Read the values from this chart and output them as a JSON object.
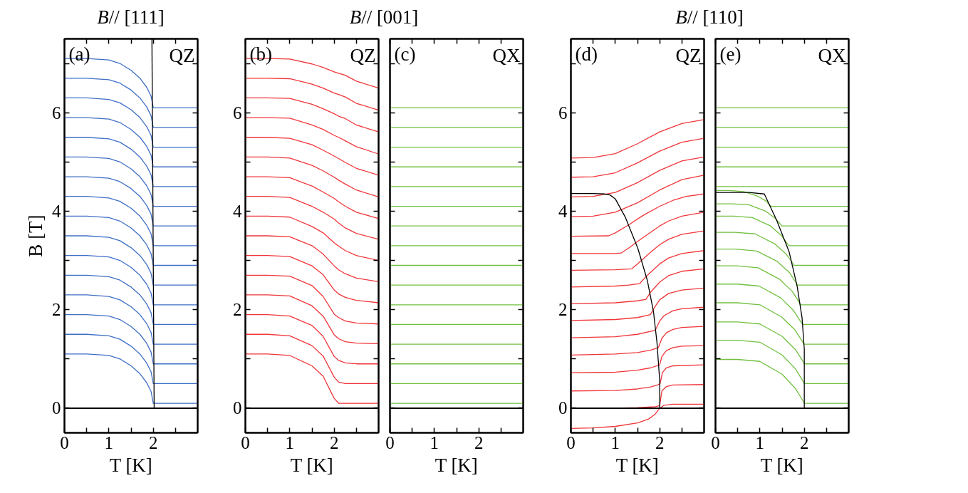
{
  "chart_data": [
    {
      "type": "line",
      "title": "B// [111]",
      "xlabel": "T [K]",
      "ylabel": "B [T]",
      "annotations": [
        "(a)",
        "QZ"
      ],
      "xlim": [
        0,
        3
      ],
      "ylim": [
        -0.5,
        7.5
      ],
      "xticks": [
        0,
        {
          "value": 0.5,
          "label": null
        },
        1,
        {
          "value": 1.5,
          "label": null
        },
        2,
        {
          "value": 2.5,
          "label": null
        }
      ],
      "yticks": [
        0,
        {
          "value": 1,
          "label": null
        },
        2,
        {
          "value": 3,
          "label": null
        },
        4,
        {
          "value": 5,
          "label": null
        },
        6,
        {
          "value": 7,
          "label": null
        }
      ],
      "ref_lines": [
        {
          "axis": "y",
          "value": 0,
          "color": "#000000"
        }
      ],
      "x": [
        0,
        0.5,
        1,
        1.25,
        1.5,
        1.7,
        1.85,
        1.95,
        2,
        3
      ],
      "series": [
        {
          "color": "#3f6fc6",
          "values": [
            1.1,
            1.1,
            1.07,
            1,
            0.86,
            0.7,
            0.52,
            0.34,
            0.1,
            0.1
          ]
        },
        {
          "color": "#3f6fc6",
          "values": [
            1.5,
            1.5,
            1.47,
            1.4,
            1.26,
            1.1,
            0.92,
            0.74,
            0.5,
            0.5
          ]
        },
        {
          "color": "#3f6fc6",
          "values": [
            1.9,
            1.9,
            1.87,
            1.8,
            1.66,
            1.5,
            1.32,
            1.14,
            0.9,
            0.9
          ]
        },
        {
          "color": "#3f6fc6",
          "values": [
            2.3,
            2.3,
            2.27,
            2.2,
            2.06,
            1.9,
            1.72,
            1.54,
            1.3,
            1.3
          ]
        },
        {
          "color": "#3f6fc6",
          "values": [
            2.7,
            2.7,
            2.67,
            2.6,
            2.46,
            2.3,
            2.12,
            1.94,
            1.7,
            1.7
          ]
        },
        {
          "color": "#3f6fc6",
          "values": [
            3.1,
            3.1,
            3.07,
            3,
            2.86,
            2.7,
            2.52,
            2.34,
            2.1,
            2.1
          ]
        },
        {
          "color": "#3f6fc6",
          "values": [
            3.5,
            3.5,
            3.47,
            3.4,
            3.26,
            3.1,
            2.92,
            2.74,
            2.5,
            2.5
          ]
        },
        {
          "color": "#3f6fc6",
          "values": [
            3.9,
            3.9,
            3.87,
            3.8,
            3.66,
            3.5,
            3.32,
            3.14,
            2.9,
            2.9
          ]
        },
        {
          "color": "#3f6fc6",
          "values": [
            4.3,
            4.3,
            4.27,
            4.2,
            4.06,
            3.9,
            3.72,
            3.54,
            3.3,
            3.3
          ]
        },
        {
          "color": "#3f6fc6",
          "values": [
            4.7,
            4.7,
            4.67,
            4.6,
            4.46,
            4.3,
            4.12,
            3.94,
            3.7,
            3.7
          ]
        },
        {
          "color": "#3f6fc6",
          "values": [
            5.1,
            5.1,
            5.07,
            5,
            4.86,
            4.7,
            4.52,
            4.34,
            4.1,
            4.1
          ]
        },
        {
          "color": "#3f6fc6",
          "values": [
            5.5,
            5.5,
            5.47,
            5.4,
            5.26,
            5.1,
            4.92,
            4.74,
            4.5,
            4.5
          ]
        },
        {
          "color": "#3f6fc6",
          "values": [
            5.9,
            5.9,
            5.87,
            5.8,
            5.66,
            5.5,
            5.32,
            5.14,
            4.9,
            4.9
          ]
        },
        {
          "color": "#3f6fc6",
          "values": [
            6.3,
            6.3,
            6.27,
            6.2,
            6.06,
            5.9,
            5.72,
            5.54,
            5.3,
            5.3
          ]
        },
        {
          "color": "#3f6fc6",
          "values": [
            6.7,
            6.7,
            6.67,
            6.6,
            6.46,
            6.3,
            6.12,
            5.94,
            5.7,
            5.7
          ]
        },
        {
          "color": "#3f6fc6",
          "values": [
            7.1,
            7.1,
            7.07,
            7,
            6.86,
            6.7,
            6.52,
            6.34,
            6.1,
            6.1
          ]
        },
        {
          "color": "#000000",
          "x": [
            1.97,
            2.02
          ],
          "values": [
            7.5,
            0
          ]
        }
      ]
    },
    {
      "type": "line",
      "title": "B// [001]",
      "xlabel": "T [K]",
      "annotations": [
        "(b)",
        "QZ"
      ],
      "xlim": [
        0,
        3
      ],
      "ylim": [
        -0.5,
        7.5
      ],
      "xticks": [
        0,
        {
          "value": 0.5,
          "label": null
        },
        1,
        {
          "value": 1.5,
          "label": null
        },
        2,
        {
          "value": 2.5,
          "label": null
        }
      ],
      "yticks": [
        0,
        {
          "value": 1,
          "label": null
        },
        2,
        {
          "value": 3,
          "label": null
        },
        4,
        {
          "value": 5,
          "label": null
        },
        6,
        {
          "value": 7,
          "label": null
        }
      ],
      "ref_lines": [
        {
          "axis": "y",
          "value": 0,
          "color": "#000000"
        }
      ],
      "x": [
        0,
        0.5,
        1,
        1.5,
        1.75,
        2,
        2.1,
        2.25,
        2.5,
        3
      ],
      "series": [
        {
          "color": "#f0363a",
          "values": [
            1.1,
            1.1,
            1.07,
            0.86,
            0.65,
            0.2,
            0.1,
            0.1,
            0.1,
            0.1
          ]
        },
        {
          "color": "#f0363a",
          "values": [
            1.5,
            1.5,
            1.47,
            1.27,
            1.06,
            0.63,
            0.53,
            0.5,
            0.5,
            0.5
          ]
        },
        {
          "color": "#f0363a",
          "values": [
            1.9,
            1.9,
            1.87,
            1.68,
            1.46,
            1.05,
            0.97,
            0.92,
            0.9,
            0.9
          ]
        },
        {
          "color": "#f0363a",
          "values": [
            2.3,
            2.3,
            2.28,
            2.08,
            1.87,
            1.49,
            1.41,
            1.35,
            1.32,
            1.31
          ]
        },
        {
          "color": "#f0363a",
          "values": [
            2.7,
            2.7,
            2.68,
            2.49,
            2.27,
            1.91,
            1.84,
            1.77,
            1.73,
            1.71
          ]
        },
        {
          "color": "#f0363a",
          "values": [
            3.1,
            3.1,
            3.08,
            2.89,
            2.71,
            2.4,
            2.32,
            2.25,
            2.19,
            2.14
          ]
        },
        {
          "color": "#f0363a",
          "values": [
            3.5,
            3.5,
            3.48,
            3.3,
            3.13,
            2.89,
            2.81,
            2.73,
            2.64,
            2.57
          ]
        },
        {
          "color": "#f0363a",
          "values": [
            3.9,
            3.9,
            3.88,
            3.69,
            3.56,
            3.36,
            3.29,
            3.2,
            3.1,
            3.0
          ]
        },
        {
          "color": "#f0363a",
          "values": [
            4.3,
            4.3,
            4.28,
            4.1,
            3.98,
            3.84,
            3.76,
            3.66,
            3.55,
            3.43
          ]
        },
        {
          "color": "#f0363a",
          "values": [
            4.7,
            4.7,
            4.68,
            4.51,
            4.39,
            4.26,
            4.19,
            4.1,
            3.98,
            3.85
          ]
        },
        {
          "color": "#f0363a",
          "values": [
            5.1,
            5.1,
            5.08,
            4.93,
            4.82,
            4.69,
            4.63,
            4.55,
            4.43,
            4.29
          ]
        },
        {
          "color": "#f0363a",
          "values": [
            5.5,
            5.5,
            5.48,
            5.35,
            5.24,
            5.12,
            5.07,
            4.99,
            4.87,
            4.73
          ]
        },
        {
          "color": "#f0363a",
          "values": [
            5.9,
            5.9,
            5.89,
            5.75,
            5.66,
            5.54,
            5.5,
            5.43,
            5.31,
            5.16
          ]
        },
        {
          "color": "#f0363a",
          "values": [
            6.3,
            6.3,
            6.29,
            6.17,
            6.08,
            5.98,
            5.93,
            5.88,
            5.75,
            5.61
          ]
        },
        {
          "color": "#f0363a",
          "values": [
            6.7,
            6.7,
            6.69,
            6.58,
            6.5,
            6.4,
            6.37,
            6.32,
            6.19,
            6.05
          ]
        },
        {
          "color": "#f0363a",
          "values": [
            7.1,
            7.1,
            7.09,
            6.99,
            6.92,
            6.83,
            6.8,
            6.76,
            6.64,
            6.5
          ]
        }
      ]
    },
    {
      "type": "line",
      "xlabel": "T [K]",
      "annotations": [
        "(c)",
        "QX"
      ],
      "xlim": [
        0,
        3
      ],
      "ylim": [
        -0.5,
        7.5
      ],
      "tick_labels": "x",
      "xticks": [
        0,
        {
          "value": 0.5,
          "label": null
        },
        1,
        {
          "value": 1.5,
          "label": null
        },
        2,
        {
          "value": 2.5,
          "label": null
        }
      ],
      "yticks": [
        0,
        {
          "value": 1,
          "label": null
        },
        2,
        {
          "value": 3,
          "label": null
        },
        4,
        {
          "value": 5,
          "label": null
        },
        6,
        {
          "value": 7,
          "label": null
        }
      ],
      "ref_lines": [
        {
          "axis": "y",
          "value": 0,
          "color": "#000000"
        }
      ],
      "x": [
        0,
        3
      ],
      "series": [
        {
          "color": "#72c040",
          "values": [
            0.1,
            0.1
          ]
        },
        {
          "color": "#72c040",
          "values": [
            0.5,
            0.5
          ]
        },
        {
          "color": "#72c040",
          "values": [
            0.9,
            0.9
          ]
        },
        {
          "color": "#72c040",
          "values": [
            1.3,
            1.3
          ]
        },
        {
          "color": "#72c040",
          "values": [
            1.7,
            1.7
          ]
        },
        {
          "color": "#72c040",
          "values": [
            2.1,
            2.1
          ]
        },
        {
          "color": "#72c040",
          "values": [
            2.5,
            2.5
          ]
        },
        {
          "color": "#72c040",
          "values": [
            2.9,
            2.9
          ]
        },
        {
          "color": "#72c040",
          "values": [
            3.3,
            3.3
          ]
        },
        {
          "color": "#72c040",
          "values": [
            3.7,
            3.7
          ]
        },
        {
          "color": "#72c040",
          "values": [
            4.1,
            4.1
          ]
        },
        {
          "color": "#72c040",
          "values": [
            4.5,
            4.5
          ]
        },
        {
          "color": "#72c040",
          "values": [
            4.9,
            4.9
          ]
        },
        {
          "color": "#72c040",
          "values": [
            5.3,
            5.3
          ]
        },
        {
          "color": "#72c040",
          "values": [
            5.7,
            5.7
          ]
        },
        {
          "color": "#72c040",
          "values": [
            6.1,
            6.1
          ]
        }
      ]
    },
    {
      "type": "line",
      "title": "B// [110]",
      "xlabel": "T [K]",
      "annotations": [
        "(d)",
        "QZ"
      ],
      "xlim": [
        0,
        3
      ],
      "ylim": [
        -0.5,
        7.5
      ],
      "xticks": [
        0,
        {
          "value": 0.5,
          "label": null
        },
        1,
        {
          "value": 1.5,
          "label": null
        },
        2,
        {
          "value": 2.5,
          "label": null
        }
      ],
      "yticks": [
        0,
        {
          "value": 1,
          "label": null
        },
        2,
        {
          "value": 3,
          "label": null
        },
        4,
        {
          "value": 5,
          "label": null
        },
        6,
        {
          "value": 7,
          "label": null
        }
      ],
      "ref_lines": [
        {
          "axis": "y",
          "value": 0,
          "color": "#000000"
        }
      ],
      "series": [
        {
          "color": "#f0363a",
          "x": [
            0,
            0.5,
            1,
            1.5,
            1.75,
            1.9,
            2.0,
            2.1,
            2.3,
            3
          ],
          "values": [
            -0.41,
            -0.4,
            -0.37,
            -0.3,
            -0.22,
            -0.12,
            0,
            0.06,
            0.08,
            0.08
          ]
        },
        {
          "color": "#f0363a",
          "x": [
            0,
            1,
            1.5,
            1.9,
            2.0,
            2.05,
            2.15,
            2.3,
            3
          ],
          "values": [
            0,
            0,
            0.01,
            0.03,
            0.05,
            0.35,
            0.44,
            0.47,
            0.48
          ]
        },
        {
          "color": "#f0363a",
          "x": [
            0,
            1,
            1.5,
            1.8,
            1.95,
            2.01,
            2.06,
            2.15,
            2.3,
            3
          ],
          "values": [
            0.35,
            0.36,
            0.39,
            0.43,
            0.47,
            0.5,
            0.72,
            0.82,
            0.86,
            0.88
          ]
        },
        {
          "color": "#f0363a",
          "x": [
            0,
            1,
            1.5,
            1.8,
            2.0,
            2.05,
            2.15,
            2.3,
            2.5,
            3
          ],
          "values": [
            0.72,
            0.73,
            0.77,
            0.82,
            0.88,
            1.05,
            1.17,
            1.23,
            1.26,
            1.27
          ]
        },
        {
          "color": "#f0363a",
          "x": [
            0,
            1,
            1.5,
            1.8,
            1.97,
            2.05,
            2.15,
            2.3,
            2.5,
            3
          ],
          "values": [
            1.08,
            1.1,
            1.13,
            1.18,
            1.23,
            1.42,
            1.53,
            1.6,
            1.64,
            1.66
          ]
        },
        {
          "color": "#f0363a",
          "x": [
            0,
            1,
            1.5,
            1.9,
            2.0,
            2.1,
            2.3,
            2.5,
            3
          ],
          "values": [
            1.43,
            1.45,
            1.5,
            1.58,
            1.77,
            1.88,
            1.98,
            2.02,
            2.05
          ]
        },
        {
          "color": "#f0363a",
          "x": [
            0,
            1,
            1.5,
            1.79,
            1.9,
            2.0,
            2.2,
            2.5,
            3
          ],
          "values": [
            1.78,
            1.8,
            1.84,
            1.9,
            2.07,
            2.2,
            2.33,
            2.4,
            2.44
          ]
        },
        {
          "color": "#f0363a",
          "x": [
            0,
            1,
            1.5,
            1.69,
            1.8,
            2.0,
            2.2,
            2.5,
            3
          ],
          "values": [
            2.12,
            2.14,
            2.18,
            2.21,
            2.36,
            2.56,
            2.69,
            2.78,
            2.83
          ]
        },
        {
          "color": "#f0363a",
          "x": [
            0,
            1,
            1.3,
            1.55,
            1.7,
            2.0,
            2.2,
            2.5,
            3
          ],
          "values": [
            2.46,
            2.48,
            2.5,
            2.53,
            2.68,
            2.93,
            3.05,
            3.14,
            3.2
          ]
        },
        {
          "color": "#f0363a",
          "x": [
            0,
            1,
            1.37,
            1.5,
            1.8,
            2.0,
            2.2,
            2.5,
            3
          ],
          "values": [
            2.8,
            2.81,
            2.83,
            2.93,
            3.17,
            3.32,
            3.43,
            3.53,
            3.6
          ]
        },
        {
          "color": "#f0363a",
          "x": [
            0,
            1,
            1.13,
            1.3,
            1.6,
            2.0,
            2.2,
            2.5,
            3
          ],
          "values": [
            3.14,
            3.14,
            3.15,
            3.25,
            3.45,
            3.7,
            3.8,
            3.9,
            3.98
          ]
        },
        {
          "color": "#f0363a",
          "x": [
            0,
            0.85,
            1.0,
            1.3,
            1.6,
            2.0,
            2.3,
            2.6,
            3
          ],
          "values": [
            3.49,
            3.5,
            3.56,
            3.72,
            3.9,
            4.1,
            4.22,
            4.3,
            4.35
          ]
        },
        {
          "color": "#f0363a",
          "x": [
            0,
            0.5,
            1,
            1.5,
            2,
            2.5,
            3
          ],
          "values": [
            3.89,
            3.9,
            3.98,
            4.17,
            4.43,
            4.64,
            4.73
          ]
        },
        {
          "color": "#f0363a",
          "x": [
            0,
            0.5,
            1,
            1.5,
            2,
            2.5,
            3
          ],
          "values": [
            4.29,
            4.3,
            4.38,
            4.58,
            4.83,
            5.02,
            5.1
          ]
        },
        {
          "color": "#f0363a",
          "x": [
            0,
            0.5,
            1,
            1.5,
            2,
            2.5,
            3
          ],
          "values": [
            4.69,
            4.7,
            4.78,
            4.98,
            5.22,
            5.4,
            5.48
          ]
        },
        {
          "color": "#f0363a",
          "x": [
            0,
            0.5,
            1,
            1.5,
            2,
            2.5,
            3
          ],
          "values": [
            5.08,
            5.09,
            5.17,
            5.37,
            5.61,
            5.78,
            5.86
          ]
        },
        {
          "color": "#000000",
          "x": [
            0,
            0.5,
            0.75,
            0.88,
            1.0,
            1.23,
            1.51,
            1.72,
            1.86,
            1.94,
            2.0,
            2.0
          ],
          "values": [
            4.36,
            4.36,
            4.35,
            4.33,
            4.25,
            3.87,
            3.24,
            2.6,
            1.96,
            1.32,
            0.56,
            0
          ]
        }
      ]
    },
    {
      "type": "line",
      "xlabel": "T [K]",
      "annotations": [
        "(e)",
        "QX"
      ],
      "xlim": [
        0,
        3
      ],
      "ylim": [
        -0.5,
        7.5
      ],
      "tick_labels": "x",
      "xticks": [
        0,
        {
          "value": 0.5,
          "label": null
        },
        1,
        {
          "value": 1.5,
          "label": null
        },
        2,
        {
          "value": 2.5,
          "label": null
        }
      ],
      "yticks": [
        0,
        {
          "value": 1,
          "label": null
        },
        2,
        {
          "value": 3,
          "label": null
        },
        4,
        {
          "value": 5,
          "label": null
        },
        6,
        {
          "value": 7,
          "label": null
        }
      ],
      "ref_lines": [
        {
          "axis": "y",
          "value": 0,
          "color": "#000000"
        }
      ],
      "series": [
        {
          "color": "#72c040",
          "x": [
            0,
            0.5,
            1,
            1.5,
            1.8,
            1.95,
            2,
            3
          ],
          "values": [
            0.99,
            0.99,
            0.95,
            0.69,
            0.4,
            0.18,
            0.1,
            0.1
          ]
        },
        {
          "color": "#72c040",
          "x": [
            0,
            0.5,
            1,
            1.5,
            1.8,
            1.95,
            2,
            3
          ],
          "values": [
            1.38,
            1.38,
            1.34,
            1.08,
            0.8,
            0.58,
            0.5,
            0.5
          ]
        },
        {
          "color": "#72c040",
          "x": [
            0,
            0.5,
            1,
            1.5,
            1.8,
            1.95,
            2,
            3
          ],
          "values": [
            1.75,
            1.75,
            1.71,
            1.46,
            1.19,
            0.98,
            0.9,
            0.9
          ]
        },
        {
          "color": "#72c040",
          "x": [
            0,
            0.5,
            1,
            1.49,
            1.79,
            1.94,
            1.99,
            3
          ],
          "values": [
            2.14,
            2.14,
            2.1,
            1.85,
            1.59,
            1.38,
            1.3,
            1.3
          ]
        },
        {
          "color": "#72c040",
          "x": [
            0,
            0.49,
            0.98,
            1.47,
            1.76,
            1.91,
            1.96,
            3
          ],
          "values": [
            2.52,
            2.52,
            2.48,
            2.24,
            1.98,
            1.77,
            1.7,
            1.7
          ]
        },
        {
          "color": "#72c040",
          "x": [
            0,
            0.48,
            0.96,
            1.44,
            1.73,
            1.87,
            1.92,
            3
          ],
          "values": [
            2.89,
            2.89,
            2.85,
            2.62,
            2.37,
            2.17,
            2.1,
            2.1
          ]
        },
        {
          "color": "#72c040",
          "x": [
            0,
            0.46,
            0.93,
            1.39,
            1.67,
            1.8,
            1.85,
            3
          ],
          "values": [
            3.23,
            3.23,
            3.19,
            2.98,
            2.75,
            2.57,
            2.5,
            2.5
          ]
        },
        {
          "color": "#72c040",
          "x": [
            0,
            0.44,
            0.89,
            1.33,
            1.59,
            1.73,
            1.77,
            3
          ],
          "values": [
            3.57,
            3.57,
            3.54,
            3.34,
            3.13,
            2.96,
            2.9,
            2.9
          ]
        },
        {
          "color": "#72c040",
          "x": [
            0,
            0.41,
            0.83,
            1.24,
            1.49,
            1.61,
            1.65,
            3
          ],
          "values": [
            3.9,
            3.9,
            3.87,
            3.7,
            3.5,
            3.35,
            3.3,
            3.3
          ]
        },
        {
          "color": "#72c040",
          "x": [
            0,
            0.38,
            0.75,
            1.13,
            1.35,
            1.46,
            1.5,
            3
          ],
          "values": [
            4.15,
            4.15,
            4.13,
            4.0,
            3.85,
            3.74,
            3.7,
            3.7
          ]
        },
        {
          "color": "#72c040",
          "x": [
            0,
            0.31,
            0.63,
            0.94,
            1.13,
            1.22,
            1.25,
            3
          ],
          "values": [
            4.42,
            4.42,
            4.4,
            4.31,
            4.21,
            4.13,
            4.1,
            4.1
          ]
        },
        {
          "color": "#72c040",
          "x": [
            0,
            3
          ],
          "values": [
            4.5,
            4.5
          ]
        },
        {
          "color": "#72c040",
          "x": [
            0,
            3
          ],
          "values": [
            4.9,
            4.9
          ]
        },
        {
          "color": "#72c040",
          "x": [
            0,
            3
          ],
          "values": [
            5.3,
            5.3
          ]
        },
        {
          "color": "#72c040",
          "x": [
            0,
            3
          ],
          "values": [
            5.7,
            5.7
          ]
        },
        {
          "color": "#72c040",
          "x": [
            0,
            3
          ],
          "values": [
            6.1,
            6.1
          ]
        },
        {
          "color": "#000000",
          "x": [
            0,
            0.75,
            1.1,
            1.38,
            1.66,
            1.84,
            1.95,
            2.0,
            2.0
          ],
          "values": [
            4.38,
            4.38,
            4.35,
            3.81,
            3.17,
            2.47,
            1.83,
            1.2,
            0
          ]
        }
      ]
    }
  ]
}
